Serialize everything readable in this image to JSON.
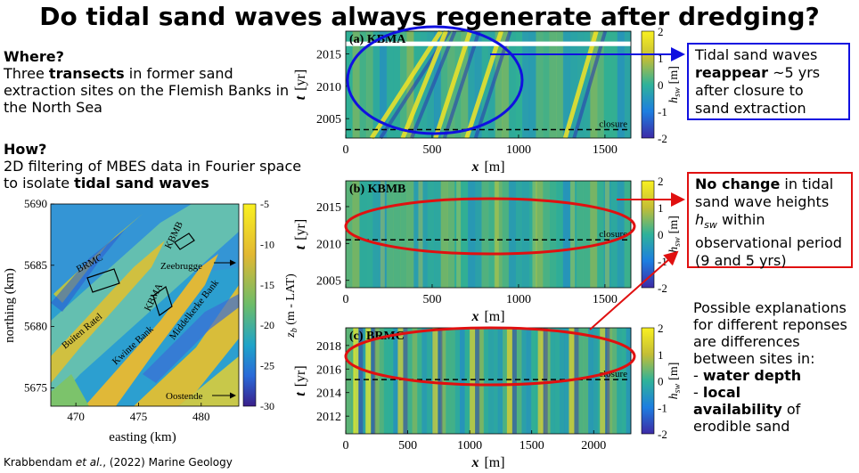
{
  "title": "Do tidal sand waves always regenerate after dredging?",
  "left": {
    "where_heading": "Where?",
    "where_pre": "Three ",
    "where_bold": "transects",
    "where_post": " in former sand extraction sites on the Flemish Banks in the North Sea",
    "how_heading": "How?",
    "how_pre": "2D filtering of MBES data in Fourier space to isolate ",
    "how_bold": "tidal sand waves",
    "citation_pre": "Krabbendam ",
    "citation_italic": "et al.",
    "citation_post": ", (2022) Marine Geology"
  },
  "callouts": {
    "blue": {
      "line1": "Tidal sand waves",
      "bold": "reappear",
      "rest": " ~5 yrs after closure to sand extraction",
      "color": "#1010e0"
    },
    "red": {
      "bold": "No change",
      "pre": " in tidal sand wave heights ",
      "var": "h",
      "sub": "sw",
      "post": " within observational period (9 and 5 yrs)",
      "color": "#e01010"
    },
    "explanation": {
      "text": "Possible explanations for different reponses are differences between sites in:",
      "item1_dash": "- ",
      "item1_bold": "water depth",
      "item2_dash": "- ",
      "item2_bold1": "local",
      "item2_bold2": "availability",
      "item2_post": " of erodible sand"
    }
  },
  "chart_data": [
    {
      "type": "heatmap",
      "title": "Bathymetry map",
      "xlabel": "easting (km)",
      "ylabel": "northing (km)",
      "xlim": [
        468,
        483
      ],
      "ylim": [
        5673.5,
        5690
      ],
      "xticks": [
        470,
        475,
        480
      ],
      "yticks": [
        5675,
        5680,
        5685,
        5690
      ],
      "colorbar": {
        "label_var": "z",
        "label_sub": "b",
        "label_post": " (m - LAT)",
        "range": [
          -30,
          -5
        ],
        "ticks": [
          -5,
          -10,
          -15,
          -20,
          -25,
          -30
        ]
      },
      "annotations": [
        "BRMC",
        "KBMB",
        "KBMA",
        "Zeebrugge",
        "Buiten Ratel",
        "Kwinte Bank",
        "Middelkerke Bank",
        "Oostende"
      ]
    },
    {
      "type": "heatmap",
      "panel": "(a) KBMA",
      "xlabel_var": "x",
      "xlabel_unit": "[m]",
      "ylabel_var": "t",
      "ylabel_unit": "[yr]",
      "xlim": [
        0,
        1650
      ],
      "xticks": [
        0,
        500,
        1000,
        1500
      ],
      "ylim": [
        2002,
        2018.5
      ],
      "yticks": [
        2005,
        2010,
        2015
      ],
      "closure_year": 2003.3,
      "closure_label": "closure",
      "gap_years": [
        2016.2,
        2016.9
      ],
      "colorbar": {
        "var": "h",
        "sub": "sw",
        "unit": "[m]",
        "range": [
          -2,
          2
        ],
        "ticks": [
          2,
          1,
          0,
          -1,
          -2
        ]
      }
    },
    {
      "type": "heatmap",
      "panel": "(b) KBMB",
      "xlabel_var": "x",
      "xlabel_unit": "[m]",
      "ylabel_var": "t",
      "ylabel_unit": "[yr]",
      "xlim": [
        0,
        1650
      ],
      "xticks": [
        0,
        500,
        1000,
        1500
      ],
      "ylim": [
        2004,
        2018.5
      ],
      "yticks": [
        2005,
        2010,
        2015
      ],
      "closure_year": 2010.5,
      "closure_label": "closure",
      "colorbar": {
        "var": "h",
        "sub": "sw",
        "unit": "[m]",
        "range": [
          -2,
          2
        ],
        "ticks": [
          2,
          1,
          0,
          -1,
          -2
        ]
      }
    },
    {
      "type": "heatmap",
      "panel": "(c) BRMC",
      "xlabel_var": "x",
      "xlabel_unit": "[m]",
      "ylabel_var": "t",
      "ylabel_unit": "[yr]",
      "xlim": [
        0,
        2300
      ],
      "xticks": [
        0,
        500,
        1000,
        1500,
        2000
      ],
      "ylim": [
        2010.5,
        2019.5
      ],
      "yticks": [
        2012,
        2014,
        2016,
        2018
      ],
      "closure_year": 2015.1,
      "closure_label": "closure",
      "colorbar": {
        "var": "h",
        "sub": "sw",
        "unit": "[m]",
        "range": [
          -2,
          2
        ],
        "ticks": [
          2,
          1,
          0,
          -1,
          -2
        ]
      }
    }
  ]
}
